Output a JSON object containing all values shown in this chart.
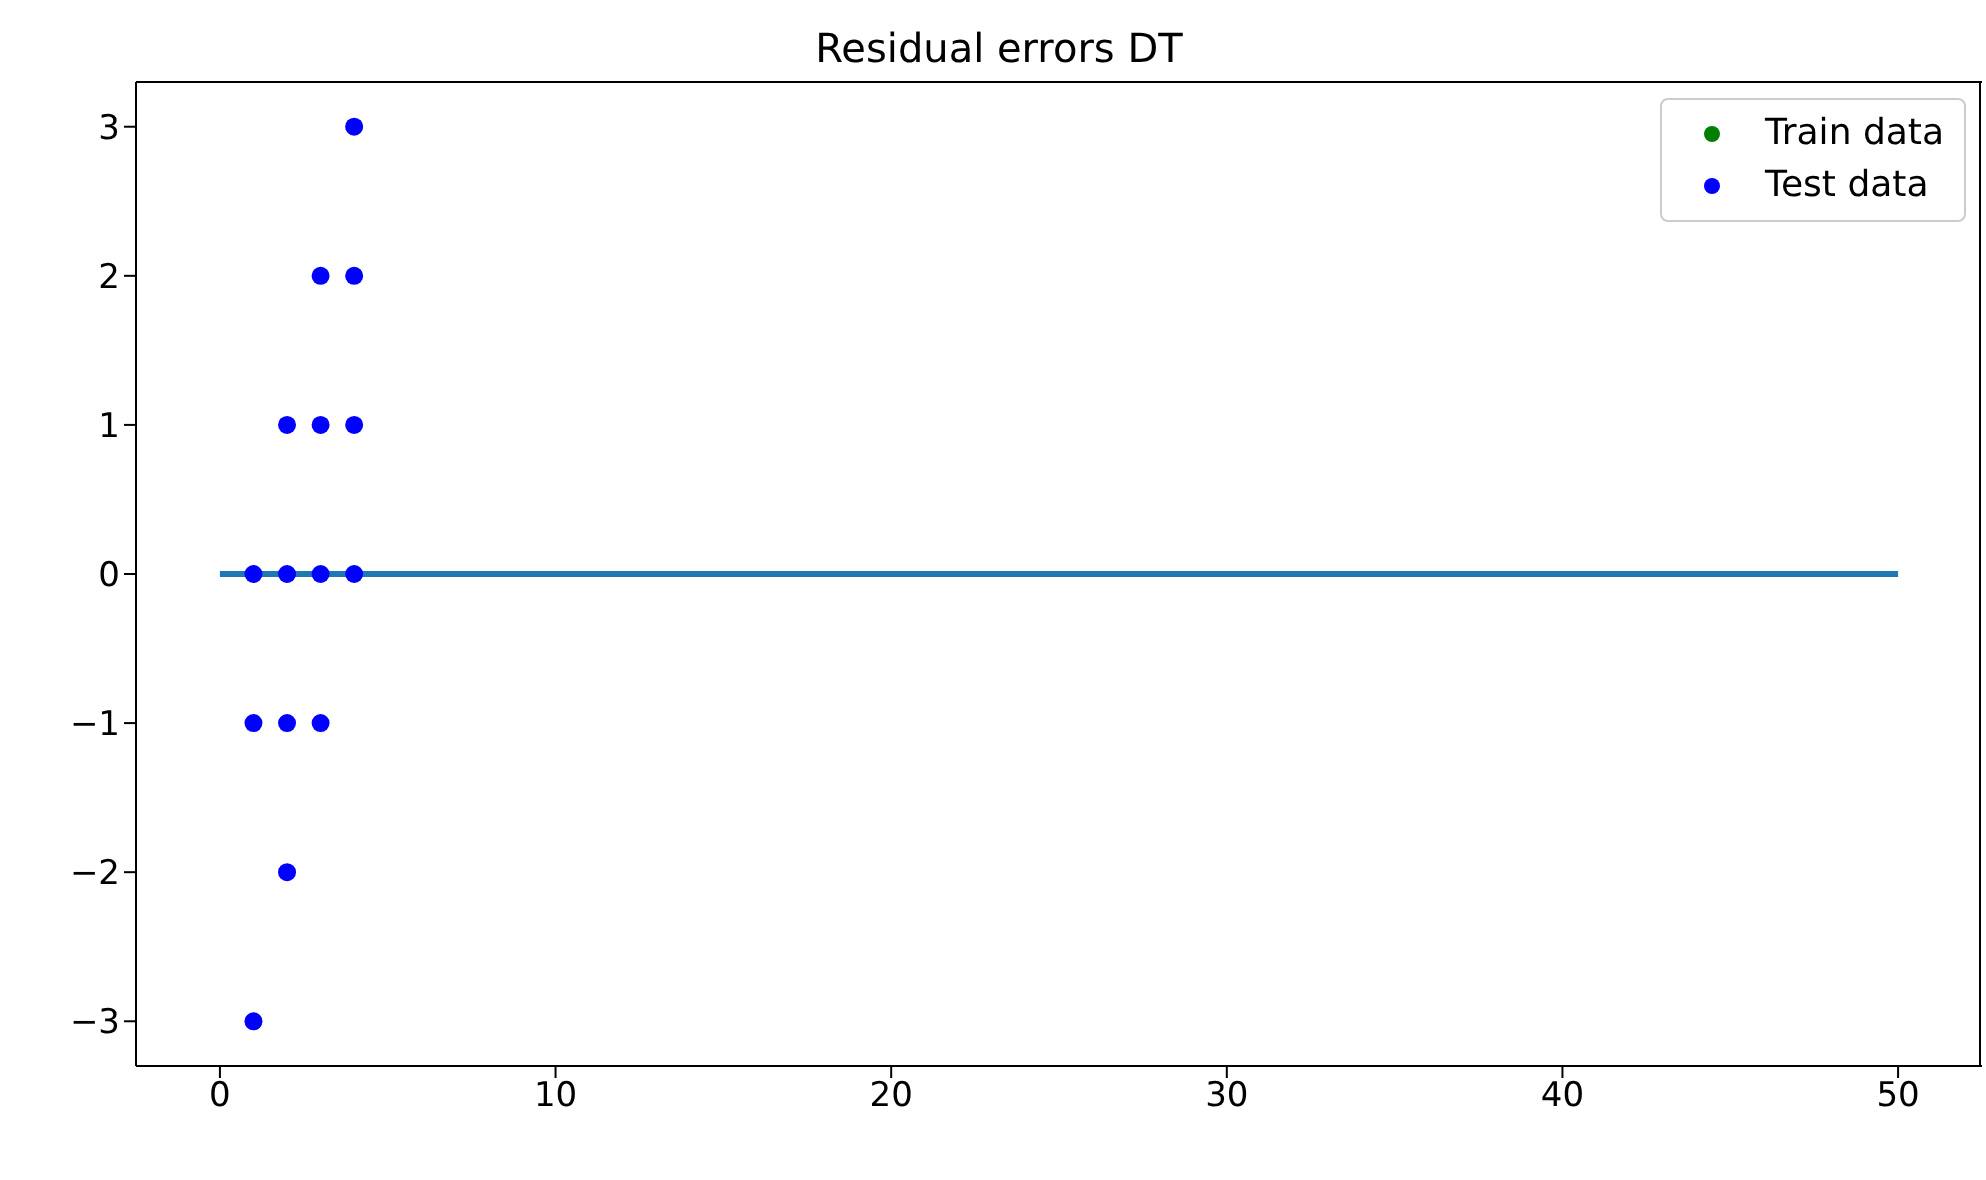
{
  "chart_data": {
    "type": "scatter",
    "title": "Residual errors DT",
    "xlim": [
      -2.5,
      52.5
    ],
    "xticks": [
      0,
      10,
      20,
      30,
      40,
      50
    ],
    "ylim": [
      -3.3,
      3.3
    ],
    "yticks": [
      -3,
      -2,
      -1,
      0,
      1,
      2,
      3
    ],
    "grid": false,
    "legend": "top right",
    "marker": "circle",
    "series": [
      {
        "name": "Train data",
        "color": "#008000"
      },
      {
        "name": "Test data",
        "color": "#0000ff",
        "x": [
          1,
          1,
          1,
          2,
          2,
          2,
          2,
          3,
          3,
          3,
          3,
          4,
          4,
          4,
          4
        ],
        "values": [
          0,
          -1,
          -3,
          1,
          0,
          -1,
          -2,
          2,
          1,
          0,
          -1,
          3,
          2,
          1,
          0
        ]
      },
      {
        "type": "line",
        "color": "#1f77b4",
        "x": [
          0,
          50
        ],
        "values": [
          0,
          0
        ],
        "marker": "none"
      }
    ]
  }
}
